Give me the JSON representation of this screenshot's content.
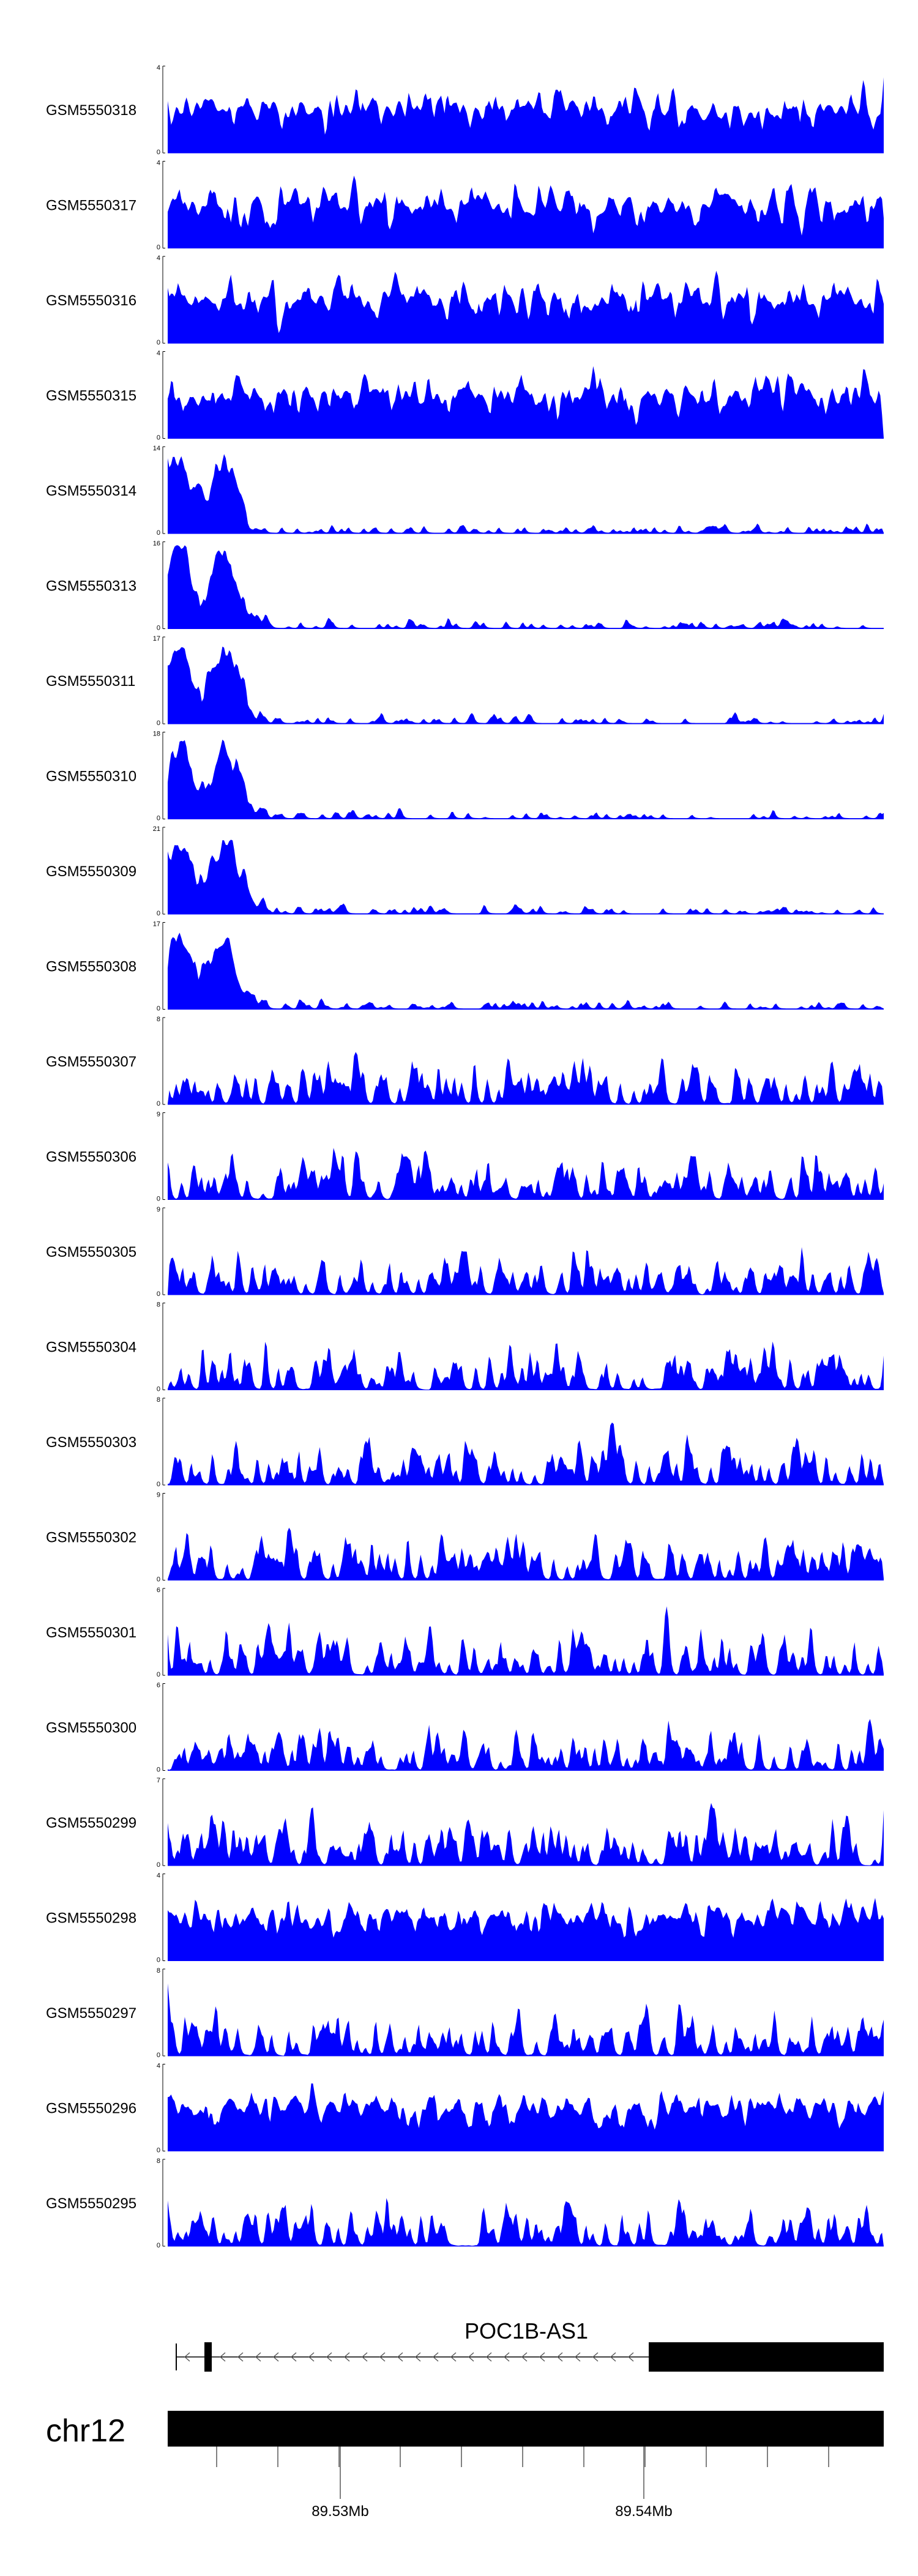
{
  "chart_data": {
    "type": "area",
    "color": "#0000ff",
    "tracks": [
      {
        "name": "GSM5550318",
        "ymax": "4",
        "ymin": "0",
        "max": 4,
        "seed": 318,
        "profile": "uniform"
      },
      {
        "name": "GSM5550317",
        "ymax": "4",
        "ymin": "0",
        "max": 4,
        "seed": 317,
        "profile": "uniform"
      },
      {
        "name": "GSM5550316",
        "ymax": "4",
        "ymin": "0",
        "max": 4,
        "seed": 316,
        "profile": "uniform"
      },
      {
        "name": "GSM5550315",
        "ymax": "4",
        "ymin": "0",
        "max": 4,
        "seed": 315,
        "profile": "uniform"
      },
      {
        "name": "GSM5550314",
        "ymax": "14",
        "ymin": "0",
        "max": 14,
        "seed": 314,
        "profile": "leftpeak"
      },
      {
        "name": "GSM5550313",
        "ymax": "16",
        "ymin": "0",
        "max": 16,
        "seed": 313,
        "profile": "leftpeak"
      },
      {
        "name": "GSM5550311",
        "ymax": "17",
        "ymin": "0",
        "max": 17,
        "seed": 311,
        "profile": "leftpeak"
      },
      {
        "name": "GSM5550310",
        "ymax": "18",
        "ymin": "0",
        "max": 18,
        "seed": 310,
        "profile": "leftpeak"
      },
      {
        "name": "GSM5550309",
        "ymax": "21",
        "ymin": "0",
        "max": 21,
        "seed": 309,
        "profile": "leftpeak"
      },
      {
        "name": "GSM5550308",
        "ymax": "17",
        "ymin": "0",
        "max": 17,
        "seed": 308,
        "profile": "leftpeak"
      },
      {
        "name": "GSM5550307",
        "ymax": "8",
        "ymin": "0",
        "max": 8,
        "seed": 307,
        "profile": "sparse"
      },
      {
        "name": "GSM5550306",
        "ymax": "9",
        "ymin": "0",
        "max": 9,
        "seed": 306,
        "profile": "sparse"
      },
      {
        "name": "GSM5550305",
        "ymax": "9",
        "ymin": "0",
        "max": 9,
        "seed": 305,
        "profile": "sparse"
      },
      {
        "name": "GSM5550304",
        "ymax": "8",
        "ymin": "0",
        "max": 8,
        "seed": 304,
        "profile": "sparse"
      },
      {
        "name": "GSM5550303",
        "ymax": "8",
        "ymin": "0",
        "max": 8,
        "seed": 303,
        "profile": "sparse"
      },
      {
        "name": "GSM5550302",
        "ymax": "9",
        "ymin": "0",
        "max": 9,
        "seed": 302,
        "profile": "sparse"
      },
      {
        "name": "GSM5550301",
        "ymax": "6",
        "ymin": "0",
        "max": 6,
        "seed": 301,
        "profile": "sparse"
      },
      {
        "name": "GSM5550300",
        "ymax": "6",
        "ymin": "0",
        "max": 6,
        "seed": 300,
        "profile": "sparse"
      },
      {
        "name": "GSM5550299",
        "ymax": "7",
        "ymin": "0",
        "max": 7,
        "seed": 299,
        "profile": "sparse"
      },
      {
        "name": "GSM5550298",
        "ymax": "4",
        "ymin": "0",
        "max": 4,
        "seed": 298,
        "profile": "uniform"
      },
      {
        "name": "GSM5550297",
        "ymax": "8",
        "ymin": "0",
        "max": 8,
        "seed": 297,
        "profile": "sparse"
      },
      {
        "name": "GSM5550296",
        "ymax": "4",
        "ymin": "0",
        "max": 4,
        "seed": 296,
        "profile": "uniform"
      },
      {
        "name": "GSM5550295",
        "ymax": "8",
        "ymin": "0",
        "max": 8,
        "seed": 295,
        "profile": "sparse"
      }
    ],
    "gene": {
      "name": "POC1B-AS1",
      "strand": "-"
    },
    "chromosome": "chr12",
    "axis": {
      "tick_labels": [
        "89.53Mb",
        "89.54Mb"
      ]
    }
  }
}
